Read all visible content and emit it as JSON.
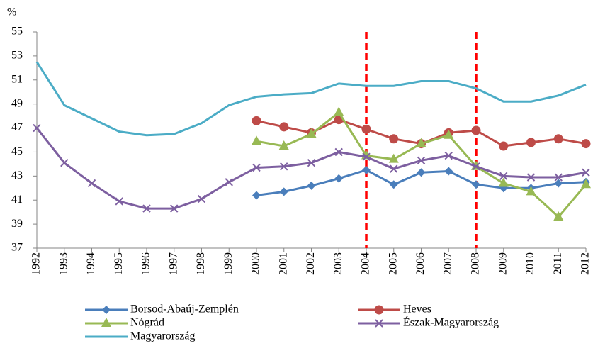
{
  "chart_data": {
    "type": "line",
    "ylabel": "%",
    "categories": [
      "1992",
      "1993",
      "1994",
      "1995",
      "1996",
      "1997",
      "1998",
      "1999",
      "2000",
      "2001",
      "2002",
      "2003",
      "2004",
      "2005",
      "2006",
      "2007",
      "2008",
      "2009",
      "2010",
      "2011",
      "2012"
    ],
    "ylim": [
      37,
      55
    ],
    "yticks": [
      37,
      39,
      41,
      43,
      45,
      47,
      49,
      51,
      53,
      55
    ],
    "grid": false,
    "vertical_lines": [
      {
        "at": "2004",
        "color": "#ff0000"
      },
      {
        "at": "2008",
        "color": "#ff0000"
      }
    ],
    "series": [
      {
        "name": "Borsod-Abaúj-Zemplén",
        "color": "#4a7ebb",
        "marker": "diamond",
        "values": [
          null,
          null,
          null,
          null,
          null,
          null,
          null,
          null,
          41.4,
          41.7,
          42.2,
          42.8,
          43.5,
          42.3,
          43.3,
          43.4,
          42.3,
          42.0,
          42.0,
          42.4,
          42.5
        ]
      },
      {
        "name": "Heves",
        "color": "#be4b48",
        "marker": "circle",
        "values": [
          null,
          null,
          null,
          null,
          null,
          null,
          null,
          null,
          47.6,
          47.1,
          46.6,
          47.7,
          46.9,
          46.1,
          45.7,
          46.6,
          46.8,
          45.5,
          45.8,
          46.1,
          45.7
        ]
      },
      {
        "name": "Nógrád",
        "color": "#98b954",
        "marker": "triangle",
        "values": [
          null,
          null,
          null,
          null,
          null,
          null,
          null,
          null,
          45.9,
          45.5,
          46.5,
          48.3,
          44.7,
          44.4,
          45.7,
          46.4,
          43.8,
          42.4,
          41.7,
          39.6,
          42.3
        ]
      },
      {
        "name": "Észak-Magyarország",
        "color": "#7d5fa0",
        "marker": "x",
        "values": [
          47.0,
          44.1,
          42.4,
          40.9,
          40.3,
          40.3,
          41.1,
          42.5,
          43.7,
          43.8,
          44.1,
          45.0,
          44.6,
          43.6,
          44.3,
          44.7,
          43.8,
          43.0,
          42.9,
          42.9,
          43.3
        ]
      },
      {
        "name": "Magyarország",
        "color": "#4bacc6",
        "marker": "none",
        "values": [
          52.5,
          48.9,
          47.8,
          46.7,
          46.4,
          46.5,
          47.4,
          48.9,
          49.6,
          49.8,
          49.9,
          50.7,
          50.5,
          50.5,
          50.9,
          50.9,
          50.3,
          49.2,
          49.2,
          49.7,
          50.6
        ]
      }
    ]
  }
}
